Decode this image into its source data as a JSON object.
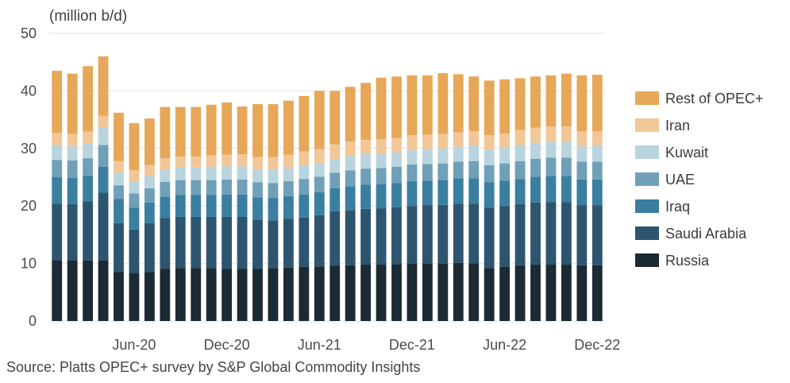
{
  "chart_data": {
    "type": "bar",
    "stacked": true,
    "unit_label": "(million b/d)",
    "ylim": [
      0,
      50
    ],
    "yticks": [
      0,
      10,
      20,
      30,
      40,
      50
    ],
    "x_tick_labels": [
      "Jun-20",
      "Dec-20",
      "Jun-21",
      "Dec-21",
      "Jun-22",
      "Dec-22"
    ],
    "categories": [
      "Jan-20",
      "Feb-20",
      "Mar-20",
      "Apr-20",
      "May-20",
      "Jun-20",
      "Jul-20",
      "Aug-20",
      "Sep-20",
      "Oct-20",
      "Nov-20",
      "Dec-20",
      "Jan-21",
      "Feb-21",
      "Mar-21",
      "Apr-21",
      "May-21",
      "Jun-21",
      "Jul-21",
      "Aug-21",
      "Sep-21",
      "Oct-21",
      "Nov-21",
      "Dec-21",
      "Jan-22",
      "Feb-22",
      "Mar-22",
      "Apr-22",
      "May-22",
      "Jun-22",
      "Jul-22",
      "Aug-22",
      "Sep-22",
      "Oct-22",
      "Nov-22",
      "Dec-22"
    ],
    "legend_position": "right",
    "grid": "horizontal",
    "series": [
      {
        "name": "Russia",
        "color": "#1b2a33",
        "values": [
          10.6,
          10.6,
          10.5,
          10.5,
          8.5,
          8.4,
          8.5,
          9.1,
          9.2,
          9.2,
          9.2,
          9.1,
          9.1,
          9.1,
          9.2,
          9.3,
          9.4,
          9.5,
          9.6,
          9.7,
          9.8,
          9.8,
          9.9,
          10.0,
          10.0,
          10.0,
          10.1,
          10.0,
          9.2,
          9.4,
          9.6,
          9.8,
          9.8,
          9.8,
          9.7,
          9.7
        ]
      },
      {
        "name": "Saudi Arabia",
        "color": "#2e5570",
        "values": [
          9.8,
          9.7,
          10.3,
          11.8,
          8.5,
          7.5,
          8.5,
          8.8,
          8.9,
          8.9,
          8.9,
          9.0,
          9.0,
          8.5,
          8.3,
          8.5,
          8.6,
          8.9,
          9.5,
          9.6,
          9.7,
          9.8,
          9.9,
          10.0,
          10.1,
          10.2,
          10.3,
          10.4,
          10.5,
          10.6,
          10.7,
          10.8,
          10.9,
          10.9,
          10.4,
          10.4
        ]
      },
      {
        "name": "Iraq",
        "color": "#3a7fa0",
        "values": [
          4.6,
          4.6,
          4.5,
          4.5,
          4.2,
          3.8,
          3.6,
          3.7,
          3.8,
          3.8,
          3.8,
          3.9,
          3.9,
          3.9,
          3.9,
          3.9,
          4.0,
          4.0,
          4.0,
          4.1,
          4.2,
          4.2,
          4.2,
          4.3,
          4.3,
          4.3,
          4.4,
          4.4,
          4.4,
          4.4,
          4.4,
          4.5,
          4.5,
          4.5,
          4.5,
          4.5
        ]
      },
      {
        "name": "UAE",
        "color": "#6fa0b8",
        "values": [
          3.0,
          3.0,
          3.0,
          3.8,
          2.4,
          2.5,
          2.5,
          2.6,
          2.6,
          2.6,
          2.6,
          2.6,
          2.6,
          2.6,
          2.6,
          2.6,
          2.7,
          2.7,
          2.7,
          2.8,
          2.8,
          2.8,
          2.8,
          2.9,
          2.9,
          2.9,
          2.9,
          3.0,
          3.0,
          3.0,
          3.1,
          3.1,
          3.2,
          3.2,
          3.1,
          3.1
        ]
      },
      {
        "name": "Kuwait",
        "color": "#b9d4de",
        "values": [
          2.6,
          2.5,
          2.5,
          3.1,
          2.2,
          2.1,
          2.1,
          2.2,
          2.2,
          2.2,
          2.3,
          2.3,
          2.3,
          2.3,
          2.3,
          2.3,
          2.4,
          2.4,
          2.4,
          2.5,
          2.5,
          2.5,
          2.5,
          2.6,
          2.6,
          2.6,
          2.6,
          2.7,
          2.7,
          2.7,
          2.8,
          2.8,
          2.8,
          2.8,
          2.7,
          2.7
        ]
      },
      {
        "name": "Iran",
        "color": "#f2c797",
        "values": [
          2.1,
          2.1,
          2.1,
          2.0,
          2.0,
          1.9,
          1.9,
          1.9,
          1.9,
          1.9,
          2.0,
          2.0,
          2.1,
          2.1,
          2.2,
          2.3,
          2.4,
          2.4,
          2.5,
          2.5,
          2.5,
          2.5,
          2.5,
          2.5,
          2.5,
          2.5,
          2.5,
          2.5,
          2.5,
          2.5,
          2.6,
          2.6,
          2.6,
          2.6,
          2.6,
          2.6
        ]
      },
      {
        "name": "Rest of OPEC+",
        "color": "#e7a758",
        "values": [
          10.8,
          10.5,
          11.4,
          10.3,
          8.4,
          8.2,
          8.1,
          8.9,
          8.6,
          8.6,
          8.8,
          9.1,
          8.3,
          9.2,
          9.2,
          9.4,
          9.6,
          10.1,
          9.3,
          9.5,
          9.9,
          10.7,
          10.7,
          10.4,
          10.3,
          10.6,
          10.1,
          9.5,
          9.5,
          9.4,
          9.0,
          8.9,
          8.9,
          9.2,
          9.7,
          9.8
        ]
      }
    ]
  },
  "source_text": "Source: Platts OPEC+ survey by S&P Global Commodity Insights"
}
